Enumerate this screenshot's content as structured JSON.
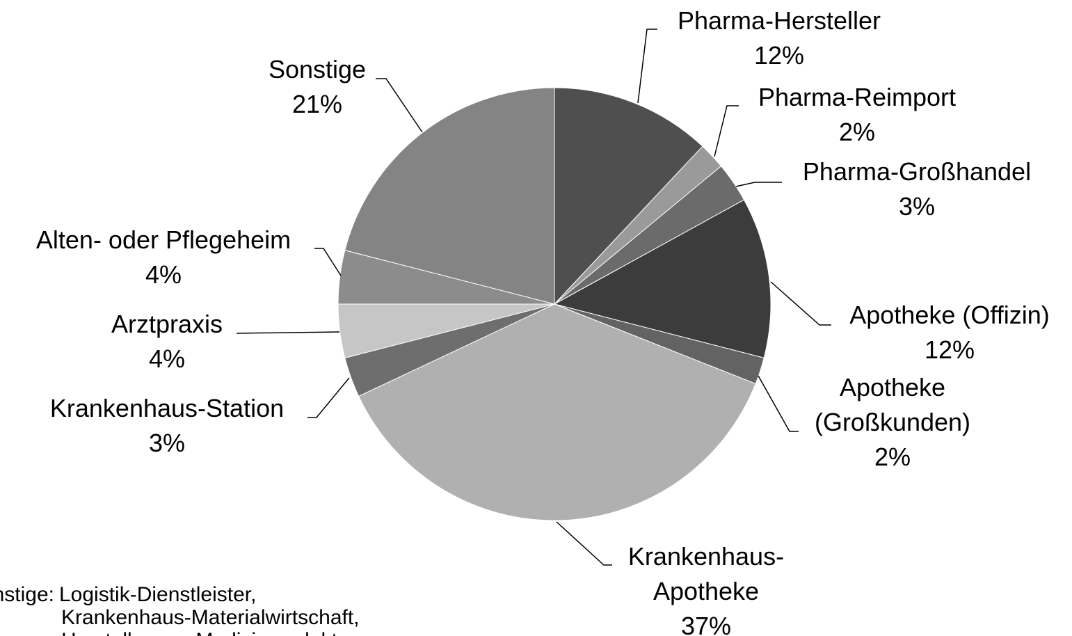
{
  "chart_data": {
    "type": "pie",
    "categories": [
      "Pharma-Hersteller",
      "Pharma-Reimport",
      "Pharma-Großhandel",
      "Apotheke (Offizin)",
      "Apotheke (Großkunden)",
      "Krankenhaus-Apotheke",
      "Krankenhaus-Station",
      "Arztpraxis",
      "Alten- oder Pflegeheim",
      "Sonstige"
    ],
    "values": [
      12,
      2,
      3,
      12,
      2,
      37,
      3,
      4,
      4,
      21
    ],
    "value_labels": [
      "12%",
      "2%",
      "3%",
      "12%",
      "2%",
      "37%",
      "3%",
      "4%",
      "4%",
      "21%"
    ],
    "colors": [
      "#4f4f4f",
      "#9a9a9a",
      "#6b6b6b",
      "#3c3c3c",
      "#636363",
      "#b0b0b0",
      "#6e6e6e",
      "#c6c6c6",
      "#8c8c8c",
      "#848484"
    ],
    "annotations": [
      "Sonstige:",
      "Logistik-Dienstleister,",
      "Krankenhaus-Materialwirtschaft,",
      "Hersteller von Medizinprodukten"
    ]
  }
}
